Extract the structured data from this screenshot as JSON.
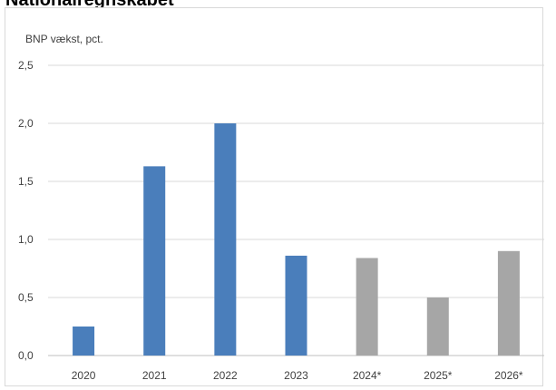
{
  "page_title": "Nationalregnskabet",
  "chart_data": {
    "type": "bar",
    "title": "",
    "ylabel": "BNP vækst, pct.",
    "xlabel": "",
    "ylim": [
      0,
      2.5
    ],
    "yticks": [
      "0,0",
      "0,5",
      "1,0",
      "1,5",
      "2,0",
      "2,5"
    ],
    "grid": true,
    "categories": [
      "2020",
      "2021",
      "2022",
      "2023",
      "2024*",
      "2025*",
      "2026*"
    ],
    "values": [
      0.25,
      1.63,
      2.0,
      0.86,
      0.84,
      0.5,
      0.9
    ],
    "bar_colors": [
      "#4a7ebb",
      "#4a7ebb",
      "#4a7ebb",
      "#4a7ebb",
      "#a6a6a6",
      "#a6a6a6",
      "#a6a6a6"
    ]
  }
}
